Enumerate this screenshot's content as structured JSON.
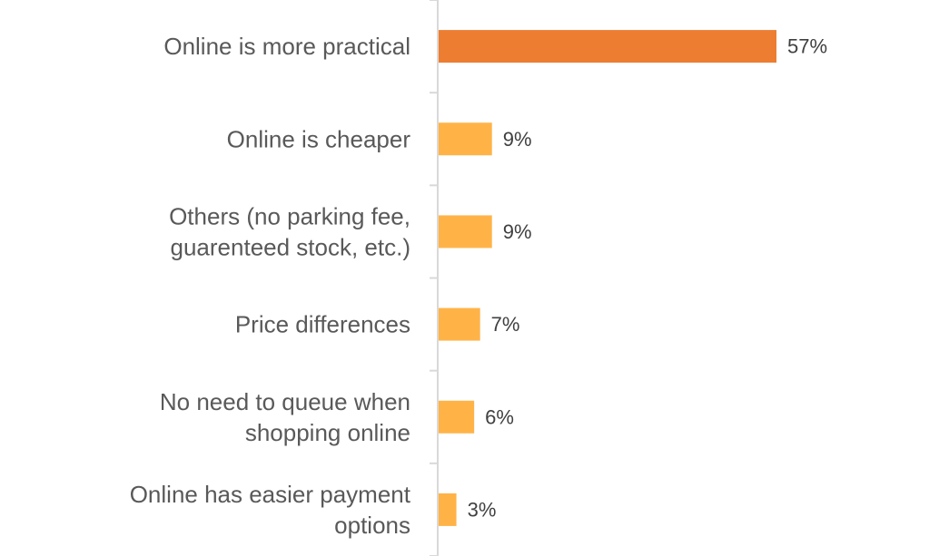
{
  "chart_data": {
    "type": "bar",
    "orientation": "horizontal",
    "categories": [
      [
        "Online is more practical"
      ],
      [
        "Online is cheaper"
      ],
      [
        "Others (no parking fee,",
        "guarenteed stock, etc.)"
      ],
      [
        "Price differences"
      ],
      [
        "No need to queue when",
        "shopping online"
      ],
      [
        "Online has easier payment",
        "options"
      ]
    ],
    "values": [
      57,
      9,
      9,
      7,
      6,
      3
    ],
    "value_labels": [
      "57%",
      "9%",
      "9%",
      "7%",
      "6%",
      "3%"
    ],
    "unit": "%",
    "xlim": [
      0,
      85
    ],
    "bar_colors": [
      "#ED7D31",
      "#FFB347",
      "#FFB347",
      "#FFB347",
      "#FFB347",
      "#FFB347"
    ],
    "axis_color": "#D9D9D9",
    "grid": false,
    "legend": "none"
  }
}
